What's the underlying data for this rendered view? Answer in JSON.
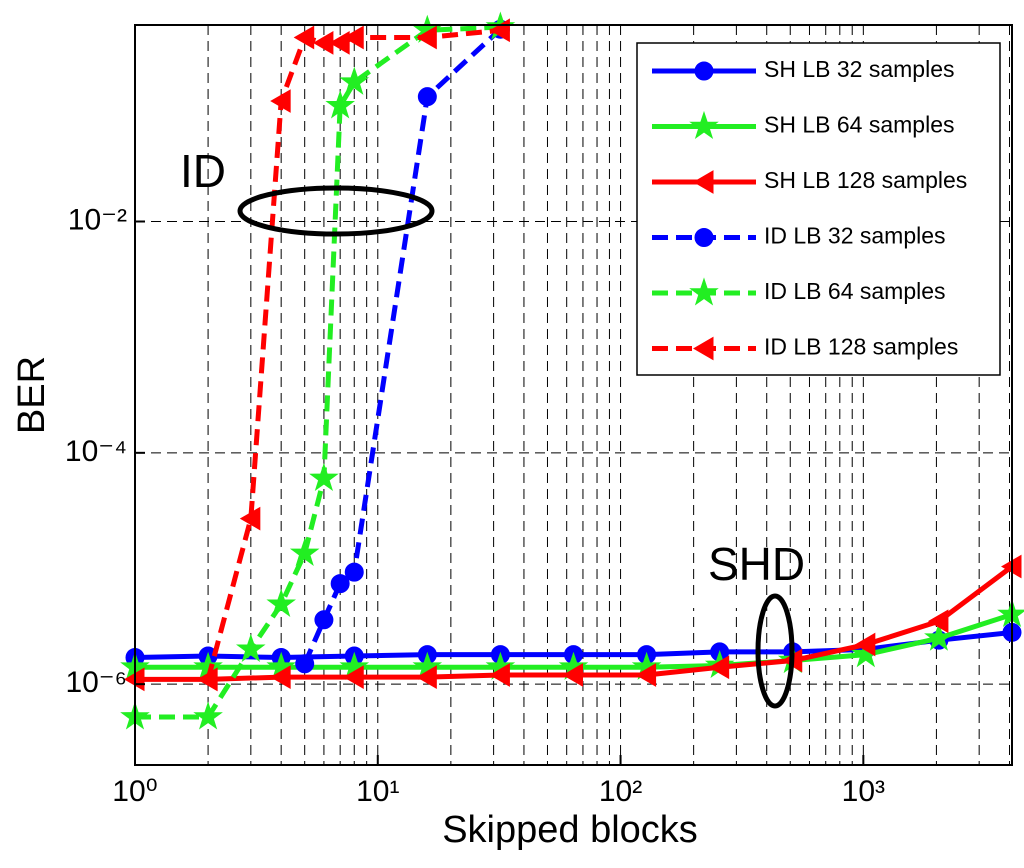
{
  "chart_data": {
    "type": "line",
    "x_label": "Skipped blocks",
    "y_label": "BER",
    "annotations": [
      "ID",
      "SHD"
    ],
    "xlog": true,
    "ylog": true,
    "grid": true,
    "minor_grid": true,
    "legend": "upper right",
    "xlim": [
      1,
      4096
    ],
    "ylim": [
      2e-07,
      0.5
    ],
    "xticks": [
      {
        "value": 1,
        "label": "10⁰"
      },
      {
        "value": 10,
        "label": "10¹"
      },
      {
        "value": 100,
        "label": "10²"
      },
      {
        "value": 1000,
        "label": "10³"
      }
    ],
    "yticks": [
      {
        "value": 1e-06,
        "label": "10⁻⁶"
      },
      {
        "value": 0.0001,
        "label": "10⁻⁴"
      },
      {
        "value": 0.01,
        "label": "10⁻²"
      }
    ],
    "series": [
      {
        "name": "SH LB 32 samples",
        "color": "#0000ff",
        "marker": "circle",
        "dashed": false,
        "x": [
          1,
          2,
          4,
          8,
          16,
          32,
          64,
          128,
          256,
          512,
          1024,
          2048,
          4096
        ],
        "values": [
          1.7e-06,
          1.75e-06,
          1.7e-06,
          1.75e-06,
          1.8e-06,
          1.8e-06,
          1.8e-06,
          1.8e-06,
          1.9e-06,
          1.9e-06,
          2e-06,
          2.4e-06,
          2.8e-06
        ]
      },
      {
        "name": "SH LB 64 samples",
        "color": "#22ee22",
        "marker": "star",
        "dashed": false,
        "x": [
          1,
          2,
          4,
          8,
          16,
          32,
          64,
          128,
          256,
          512,
          1024,
          2048,
          4096
        ],
        "values": [
          1.4e-06,
          1.4e-06,
          1.4e-06,
          1.4e-06,
          1.4e-06,
          1.4e-06,
          1.4e-06,
          1.4e-06,
          1.45e-06,
          1.6e-06,
          1.8e-06,
          2.5e-06,
          4e-06
        ]
      },
      {
        "name": "SH LB 128 samples",
        "color": "#ff0000",
        "marker": "triangle",
        "dashed": false,
        "x": [
          1,
          2,
          4,
          8,
          16,
          32,
          64,
          128,
          256,
          512,
          1024,
          2048,
          4096
        ],
        "values": [
          1.1e-06,
          1.1e-06,
          1.15e-06,
          1.15e-06,
          1.15e-06,
          1.2e-06,
          1.2e-06,
          1.2e-06,
          1.4e-06,
          1.6e-06,
          2.2e-06,
          3.5e-06,
          1.04e-05
        ]
      },
      {
        "name": "ID LB 32 samples",
        "color": "#0000ff",
        "marker": "circle",
        "dashed": true,
        "x": [
          5,
          6,
          7,
          8,
          16,
          32
        ],
        "values": [
          1.5e-06,
          3.6e-06,
          7.4e-06,
          9.3e-06,
          0.12,
          0.46
        ]
      },
      {
        "name": "ID LB 64 samples",
        "color": "#22ee22",
        "marker": "star",
        "dashed": true,
        "x": [
          1,
          2,
          3,
          4,
          5,
          6,
          7,
          8,
          16,
          32
        ],
        "values": [
          5.2e-07,
          5.2e-07,
          2e-06,
          4.9e-06,
          1.35e-05,
          6e-05,
          0.1,
          0.16,
          0.45,
          0.48
        ]
      },
      {
        "name": "ID LB 128 samples",
        "color": "#ff0000",
        "marker": "triangle",
        "dashed": true,
        "x": [
          2,
          3,
          4,
          5,
          6,
          7,
          8,
          16,
          32
        ],
        "values": [
          1.1e-06,
          2.7e-05,
          0.11,
          0.39,
          0.35,
          0.35,
          0.39,
          0.39,
          0.45
        ]
      }
    ]
  }
}
